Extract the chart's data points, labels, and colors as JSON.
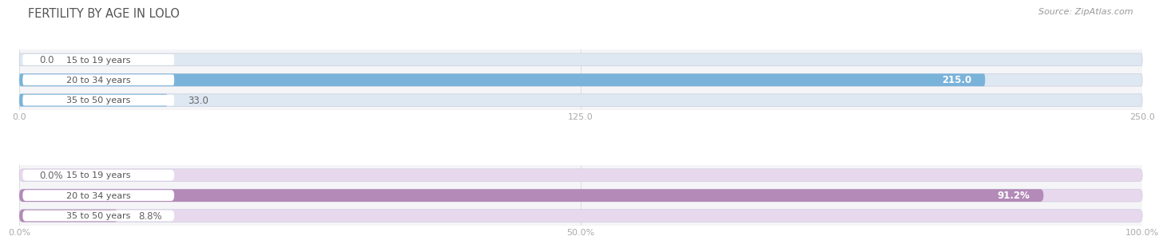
{
  "title": "FERTILITY BY AGE IN LOLO",
  "source": "Source: ZipAtlas.com",
  "top_chart": {
    "categories": [
      "15 to 19 years",
      "20 to 34 years",
      "35 to 50 years"
    ],
    "values": [
      0.0,
      215.0,
      33.0
    ],
    "xlim": [
      0,
      250
    ],
    "xticks": [
      0.0,
      125.0,
      250.0
    ],
    "xtick_labels": [
      "0.0",
      "125.0",
      "250.0"
    ],
    "bar_color": "#7ab3d9",
    "bar_bg_color": "#dde8f2",
    "value_labels": [
      "0.0",
      "215.0",
      "33.0"
    ],
    "value_label_inside": [
      false,
      true,
      false
    ]
  },
  "bottom_chart": {
    "categories": [
      "15 to 19 years",
      "20 to 34 years",
      "35 to 50 years"
    ],
    "values": [
      0.0,
      91.2,
      8.8
    ],
    "xlim": [
      0,
      100
    ],
    "xticks": [
      0.0,
      50.0,
      100.0
    ],
    "xtick_labels": [
      "0.0%",
      "50.0%",
      "100.0%"
    ],
    "bar_color": "#b38ab8",
    "bar_bg_color": "#e8d8ee",
    "value_labels": [
      "0.0%",
      "91.2%",
      "8.8%"
    ],
    "value_label_inside": [
      false,
      true,
      false
    ]
  },
  "title_color": "#555555",
  "source_color": "#999999",
  "label_bg": "#ffffff",
  "label_text_color": "#555555"
}
